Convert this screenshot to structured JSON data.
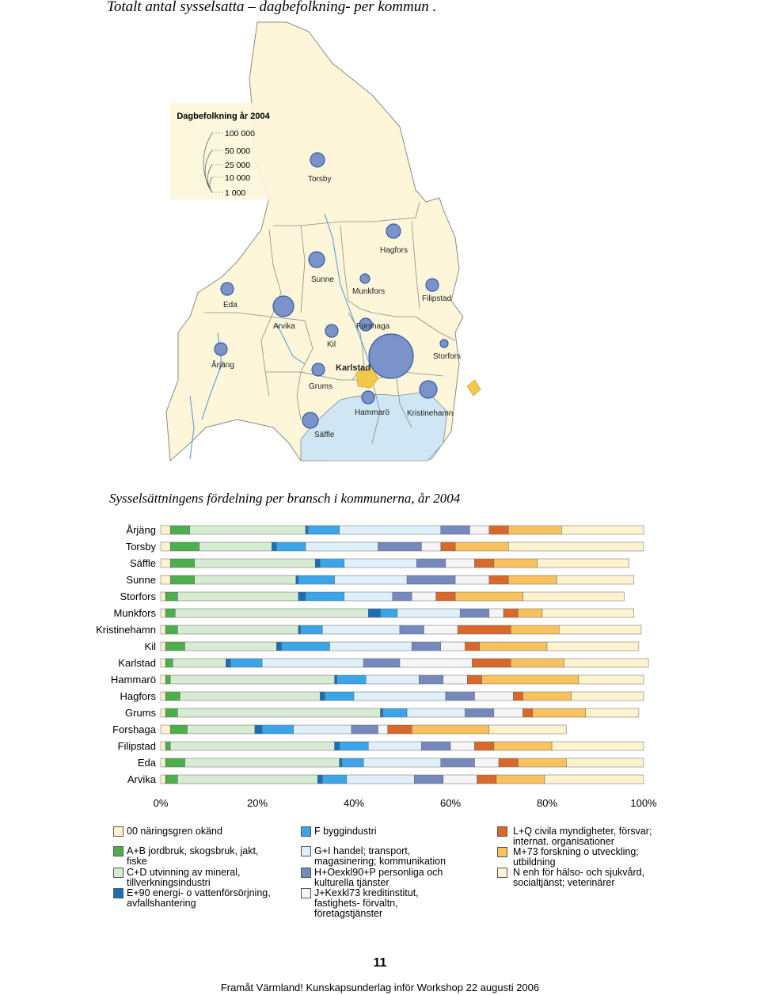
{
  "page": {
    "top_title": "Totalt antal sysselsatta – dagbefolkning-  per kommun .",
    "page_number": "11",
    "footer": "Framåt Värmland! Kunskapsunderlag inför Workshop 22 augusti 2006"
  },
  "map": {
    "legend_title": "Dagbefolkning år 2004",
    "legend_values": [
      "100 000",
      "50 000",
      "25 000",
      "10 000",
      "1 000"
    ],
    "labels": {
      "torsby": "Torsby",
      "hagfors": "Hagfors",
      "sunne": "Sunne",
      "eda": "Eda",
      "munkfors": "Munkfors",
      "filipstad": "Filipstad",
      "arvika": "Arvika",
      "forshaga": "Forshaga",
      "kil": "Kil",
      "storfors": "Storfors",
      "arjang": "Årjäng",
      "karlstad": "Karlstad",
      "grums": "Grums",
      "hammaro": "Hammarö",
      "kristinehamn": "Kristinehamn",
      "saffle": "Säffle"
    }
  },
  "chart_data": {
    "type": "bar",
    "title": "Sysselsättningens fördelning per bransch i kommunerna, år 2004",
    "categories": [
      "Årjäng",
      "Torsby",
      "Säffle",
      "Sunne",
      "Storfors",
      "Munkfors",
      "Kristinehamn",
      "Kil",
      "Karlstad",
      "Hammarö",
      "Hagfors",
      "Grums",
      "Forshaga",
      "Filipstad",
      "Eda",
      "Arvika"
    ],
    "xticks": [
      "0%",
      "20%",
      "40%",
      "60%",
      "80%",
      "100%"
    ],
    "xlim": [
      0,
      100
    ],
    "series": [
      {
        "name": "00 näringsgren okänd",
        "color": "#fdf3d0",
        "values": [
          2,
          2,
          2,
          2,
          1,
          1,
          1,
          1,
          1,
          1,
          1,
          1,
          2,
          1,
          1,
          1
        ]
      },
      {
        "name": "A+B jordbruk, skogsbruk, jakt, fiske",
        "color": "#4cae4c",
        "values": [
          4,
          6,
          5,
          5,
          2.5,
          2,
          2.5,
          4,
          1.5,
          1,
          3,
          2.5,
          3.5,
          1,
          4,
          2.5
        ]
      },
      {
        "name": "C+D utvinning av mineral, tillverkningsindustri",
        "color": "#d6ecd2",
        "values": [
          24,
          15,
          25,
          21,
          25,
          40,
          25,
          19,
          11,
          34,
          29,
          42,
          14,
          34,
          32,
          29
        ]
      },
      {
        "name": "E+90 energi- o vattenförsörjning, avfallshantering",
        "color": "#1a6fb3",
        "values": [
          0.5,
          1,
          1,
          0.5,
          1.5,
          2.5,
          0.5,
          1,
          1,
          0.5,
          1,
          0.5,
          1.5,
          1,
          0.5,
          1
        ]
      },
      {
        "name": "F byggindustri",
        "color": "#3aa5e8",
        "values": [
          6.5,
          6,
          5,
          7.5,
          8,
          3.5,
          4.5,
          10,
          6.5,
          6,
          6,
          5,
          6.5,
          6,
          4.5,
          5
        ]
      },
      {
        "name": "G+I handel; transport, magasinering; kommunikation",
        "color": "#dff0fa",
        "values": [
          21,
          15,
          15,
          15,
          10,
          13,
          16,
          17,
          21,
          11,
          19,
          12,
          12,
          11,
          16,
          14
        ]
      },
      {
        "name": "H+Oexkl90+P personliga och kulturella tjänster",
        "color": "#7589bd",
        "values": [
          6,
          9,
          6,
          10,
          4,
          6,
          5,
          6,
          7.5,
          5,
          6,
          6,
          5.5,
          6,
          7,
          6
        ]
      },
      {
        "name": "J+Kexkl73 kreditinstitut, fastighets- förvaltn, företagstjänster",
        "color": "#f5f5f8",
        "values": [
          4,
          4,
          6,
          7,
          5,
          3,
          7,
          5,
          15,
          5,
          8,
          6,
          2,
          5,
          5,
          7
        ]
      },
      {
        "name": "L+Q civila myndigheter, försvar; internat. organisationer",
        "color": "#d9692b",
        "values": [
          4,
          3,
          4,
          4,
          4,
          3,
          11,
          3,
          8,
          3,
          2,
          2,
          5,
          4,
          4,
          4
        ]
      },
      {
        "name": "M+73 forskning o utveckling; utbildning",
        "color": "#f9c25e",
        "values": [
          11,
          11,
          9,
          10,
          14,
          5,
          10,
          14,
          11,
          20,
          10,
          11,
          16,
          12,
          10,
          10
        ]
      },
      {
        "name": "N enh för hälso- och sjukvård, socialtjänst; veterinärer",
        "color": "#fdf3d0",
        "values": [
          17,
          28,
          19,
          16,
          21,
          19,
          17,
          19,
          17.5,
          13.5,
          15,
          11,
          16,
          19,
          16,
          20.5
        ]
      }
    ]
  },
  "legend": {
    "items": [
      {
        "label": "00 näringsgren okänd",
        "color": "#fdf3d0"
      },
      {
        "label": "A+B jordbruk, skogsbruk, jakt, fiske",
        "color": "#4cae4c"
      },
      {
        "label": "C+D utvinning av mineral, tillverkningsindustri",
        "color": "#d6ecd2"
      },
      {
        "label": "E+90 energi- o vattenförsörjning, avfallshantering",
        "color": "#1a6fb3"
      },
      {
        "label": "F byggindustri",
        "color": "#3aa5e8"
      },
      {
        "label": "G+I handel; transport, magasinering; kommunikation",
        "color": "#dff0fa"
      },
      {
        "label": "H+Oexkl90+P personliga och kulturella tjänster",
        "color": "#7589bd"
      },
      {
        "label": "J+Kexkl73 kreditinstitut, fastighets- förvaltn, företagstjänster",
        "color": "#f5f5f8"
      },
      {
        "label": "L+Q civila myndigheter, försvar; internat. organisationer",
        "color": "#d9692b"
      },
      {
        "label": "M+73 forskning o utveckling; utbildning",
        "color": "#f9c25e"
      },
      {
        "label": "N enh för hälso- och sjukvård, socialtjänst; veterinärer",
        "color": "#fdf3d0"
      }
    ]
  }
}
